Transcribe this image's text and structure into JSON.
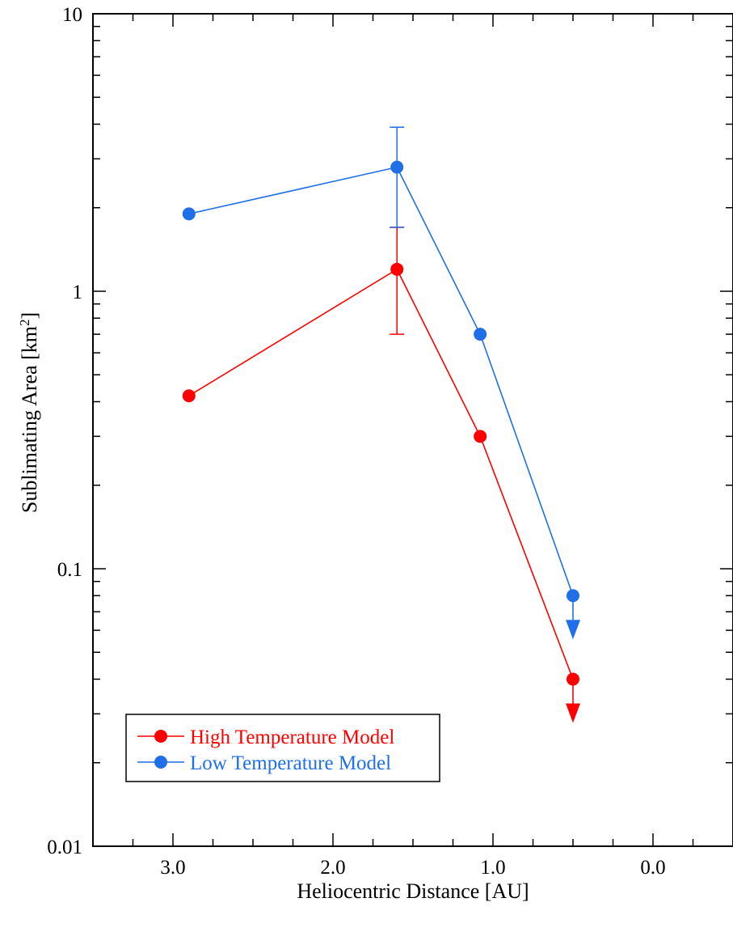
{
  "chart_data": {
    "type": "scatter",
    "title": "",
    "xlabel": "Heliocentric Distance [AU]",
    "ylabel_main": "Sublimating Area [km",
    "ylabel_sup": "2",
    "ylabel_end": "]",
    "x_axis": {
      "min": 3.5,
      "max": -0.5,
      "reversed": true,
      "ticks": [
        3,
        2,
        1,
        0
      ],
      "tick_labels": [
        "3.0",
        "2.0",
        "1.0",
        "0.0"
      ]
    },
    "y_axis": {
      "scale": "log",
      "min": 0.01,
      "max": 10,
      "ticks": [
        0.01,
        0.1,
        1,
        10
      ],
      "tick_labels": [
        "0.01",
        "0.1",
        "1",
        "10"
      ]
    },
    "grid": false,
    "legend_position": "bottom-left",
    "series": [
      {
        "name": "High Temperature Model",
        "color": "#ff0000",
        "x": [
          2.9,
          1.6,
          1.08,
          0.5
        ],
        "y": [
          0.42,
          1.2,
          0.3,
          0.04
        ],
        "upper_limit_last": true,
        "error_bar": {
          "x": 1.6,
          "y_low": 0.7,
          "y_high": 1.7
        }
      },
      {
        "name": "Low Temperature Model",
        "color": "#1f6fe8",
        "x": [
          2.9,
          1.6,
          1.08,
          0.5
        ],
        "y": [
          1.9,
          2.8,
          0.7,
          0.08
        ],
        "upper_limit_last": true,
        "error_bar": {
          "x": 1.6,
          "y_low": 1.7,
          "y_high": 3.9
        }
      }
    ]
  }
}
